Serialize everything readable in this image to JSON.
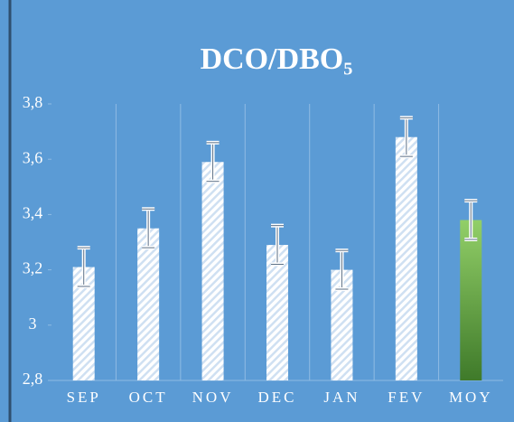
{
  "chart_data": {
    "type": "bar",
    "title": "DCO/DBO₅",
    "categories": [
      "SEP",
      "OCT",
      "NOV",
      "DEC",
      "JAN",
      "FEV",
      "MOY"
    ],
    "values": [
      3.21,
      3.35,
      3.59,
      3.29,
      3.2,
      3.68,
      3.38
    ],
    "errors": [
      0.07,
      0.07,
      0.07,
      0.07,
      0.07,
      0.07,
      0.07
    ],
    "colors": [
      "#ffffff",
      "#ffffff",
      "#ffffff",
      "#ffffff",
      "#ffffff",
      "#ffffff",
      "#5da03c"
    ],
    "ylim": [
      2.8,
      3.8
    ],
    "yticks": [
      {
        "value": 2.8,
        "label": "2,8"
      },
      3,
      {
        "value": 3.2,
        "label": "3,2"
      },
      {
        "value": 3.4,
        "label": "3,4"
      },
      {
        "value": 3.6,
        "label": "3,6"
      },
      {
        "value": 3.8,
        "label": "3,8"
      }
    ]
  }
}
